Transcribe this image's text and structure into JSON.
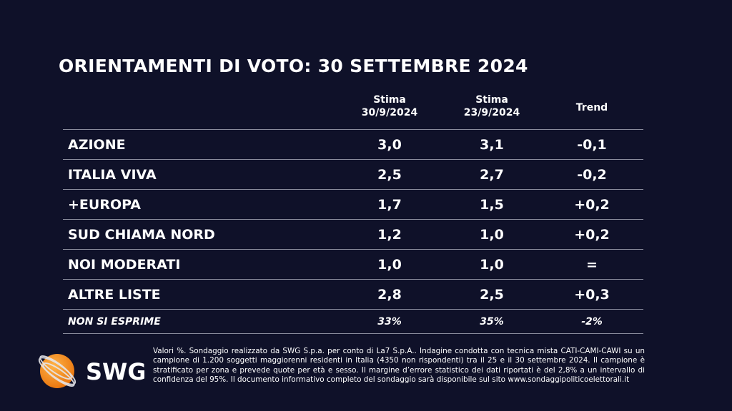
{
  "title": "ORIENTAMENTI DI VOTO: 30 SETTEMBRE 2024",
  "columns": [
    {
      "line1": "Stima",
      "line2": "30/9/2024"
    },
    {
      "line1": "Stima",
      "line2": "23/9/2024"
    },
    {
      "line1": "Trend",
      "line2": ""
    }
  ],
  "rows": [
    {
      "party": "AZIONE",
      "current": "3,0",
      "previous": "3,1",
      "trend": "-0,1"
    },
    {
      "party": "ITALIA VIVA",
      "current": "2,5",
      "previous": "2,7",
      "trend": "-0,2"
    },
    {
      "party": "+EUROPA",
      "current": "1,7",
      "previous": "1,5",
      "trend": "+0,2"
    },
    {
      "party": "SUD CHIAMA NORD",
      "current": "1,2",
      "previous": "1,0",
      "trend": "+0,2"
    },
    {
      "party": "NOI MODERATI",
      "current": "1,0",
      "previous": "1,0",
      "trend": "="
    },
    {
      "party": "ALTRE LISTE",
      "current": "2,8",
      "previous": "2,5",
      "trend": "+0,3"
    }
  ],
  "non_si_esprime": {
    "party": "NON SI ESPRIME",
    "current": "33%",
    "previous": "35%",
    "trend": "-2%"
  },
  "logo": {
    "text": "SWG",
    "color": "#f7941d"
  },
  "footnote": "Valori %. Sondaggio realizzato da SWG S.p.a. per conto di La7 S.p.A.. Indagine condotta con tecnica mista CATI-CAMI-CAWI su un campione di 1.200 soggetti maggiorenni residenti in Italia (4350 non rispondenti) tra il 25 e il 30 settembre 2024. Il campione è stratificato per zona e prevede quote per età e sesso. Il margine d’errore statistico dei dati riportati è del 2,8% a un intervallo di confidenza del 95%. Il documento informativo completo del sondaggio sarà disponibile sul sito www.sondaggipoliticoelettorali.it",
  "colors": {
    "background": "#0f1129",
    "text": "#ffffff",
    "rule": "#8a8c9c"
  }
}
